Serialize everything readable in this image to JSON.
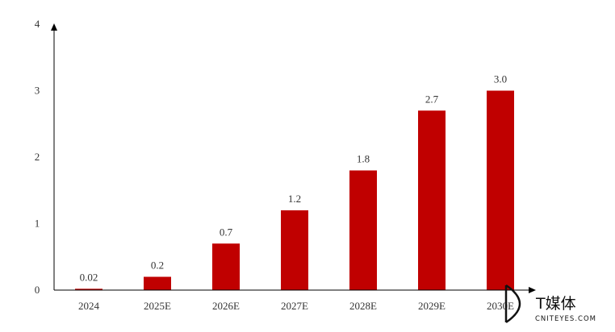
{
  "chart_data": {
    "type": "bar",
    "categories": [
      "2024",
      "2025E",
      "2026E",
      "2027E",
      "2028E",
      "2029E",
      "2030E"
    ],
    "values": [
      0.02,
      0.2,
      0.7,
      1.2,
      1.8,
      2.7,
      3.0
    ],
    "data_labels": [
      "0.02",
      "0.2",
      "0.7",
      "1.2",
      "1.8",
      "2.7",
      "3.0"
    ],
    "y_ticks": [
      "0",
      "1",
      "2",
      "3",
      "4"
    ],
    "ylim": [
      0,
      4
    ],
    "title": "",
    "xlabel": "",
    "ylabel": "",
    "grid": false,
    "colors": {
      "bar": "#c00000",
      "axis": "#000000",
      "text": "#333333"
    }
  },
  "watermark": {
    "icon": "cniteyes-logo-icon",
    "text": "T媒体",
    "subtext": "CNITEYES.COM"
  }
}
